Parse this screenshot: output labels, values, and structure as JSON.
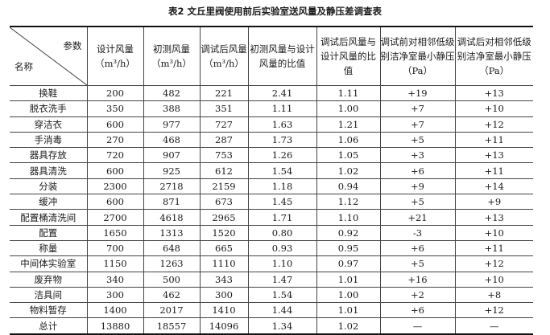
{
  "title": "表2 文丘里阀使用前后实验室送风量及静压差调查表",
  "header": {
    "corner_param": "参数",
    "corner_name": "名称",
    "columns": [
      "设计风量（m³/h）",
      "初测风量（m³/h）",
      "调试后风量（m³/h）",
      "初测风量与设计风量的比值",
      "调试后风量与设计风量的比值",
      "调试前对相邻低级别洁净室最小静压（Pa）",
      "调试后对相邻低级别洁净室最小静压（Pa）"
    ]
  },
  "rows": [
    [
      "换鞋",
      "200",
      "482",
      "221",
      "2.41",
      "1.11",
      "+19",
      "+13"
    ],
    [
      "脱衣洗手",
      "350",
      "388",
      "351",
      "1.11",
      "1.00",
      "+7",
      "+10"
    ],
    [
      "穿洁衣",
      "600",
      "977",
      "727",
      "1.63",
      "1.21",
      "+7",
      "+12"
    ],
    [
      "手消毒",
      "270",
      "468",
      "287",
      "1.73",
      "1.06",
      "+5",
      "+11"
    ],
    [
      "器具存放",
      "720",
      "907",
      "753",
      "1.26",
      "1.05",
      "+3",
      "+13"
    ],
    [
      "器具清洗",
      "600",
      "925",
      "612",
      "1.54",
      "1.02",
      "+6",
      "+11"
    ],
    [
      "分装",
      "2300",
      "2718",
      "2159",
      "1.18",
      "0.94",
      "+9",
      "+14"
    ],
    [
      "缓冲",
      "600",
      "871",
      "673",
      "1.45",
      "1.12",
      "+5",
      "+9"
    ],
    [
      "配置桶清洗间",
      "2700",
      "4618",
      "2965",
      "1.71",
      "1.10",
      "+21",
      "+13"
    ],
    [
      "配置",
      "1650",
      "1313",
      "1520",
      "0.80",
      "0.92",
      "-3",
      "+10"
    ],
    [
      "称量",
      "700",
      "648",
      "665",
      "0.93",
      "0.95",
      "+6",
      "+11"
    ],
    [
      "中间体实验室",
      "1150",
      "1263",
      "1110",
      "1.10",
      "0.97",
      "+5",
      "+12"
    ],
    [
      "废弃物",
      "340",
      "500",
      "343",
      "1.47",
      "1.01",
      "+16",
      "+10"
    ],
    [
      "洁具间",
      "300",
      "462",
      "300",
      "1.54",
      "1.00",
      "+2",
      "+8"
    ],
    [
      "物料暂存",
      "1400",
      "2017",
      "1410",
      "1.44",
      "1.01",
      "+6",
      "+12"
    ],
    [
      "总计",
      "13880",
      "18557",
      "14096",
      "1.34",
      "1.02",
      "—",
      "—"
    ]
  ]
}
